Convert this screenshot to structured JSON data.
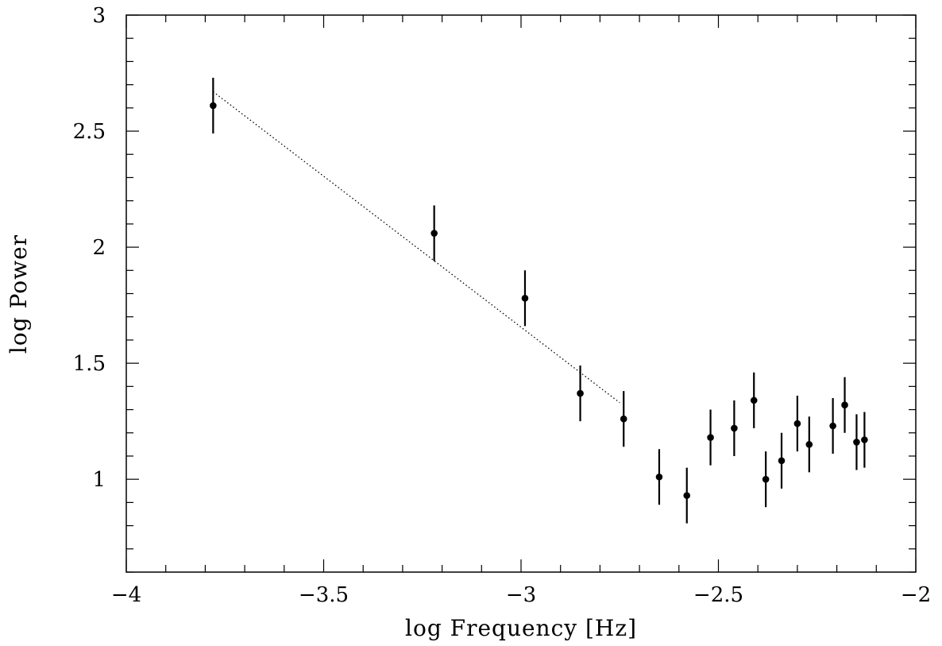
{
  "chart_data": {
    "type": "scatter",
    "title": "",
    "xlabel": "log Frequency [Hz]",
    "ylabel": "log Power",
    "xlim": [
      -4,
      -2
    ],
    "ylim": [
      0.6,
      3
    ],
    "x_ticks": [
      {
        "value": -4,
        "label": "−4"
      },
      {
        "value": -3.5,
        "label": "−3.5"
      },
      {
        "value": -3,
        "label": "−3"
      },
      {
        "value": -2.5,
        "label": "−2.5"
      },
      {
        "value": -2,
        "label": "−2"
      }
    ],
    "y_ticks": [
      {
        "value": 1,
        "label": "1"
      },
      {
        "value": 1.5,
        "label": "1.5"
      },
      {
        "value": 2,
        "label": "2"
      },
      {
        "value": 2.5,
        "label": "2.5"
      },
      {
        "value": 3,
        "label": "3"
      }
    ],
    "x_minor_step": 0.1,
    "y_minor_step": 0.1,
    "grid": false,
    "series": [
      {
        "points": [
          {
            "x": -3.78,
            "y": 2.61,
            "err": 0.12
          },
          {
            "x": -3.22,
            "y": 2.06,
            "err": 0.12
          },
          {
            "x": -2.99,
            "y": 1.78,
            "err": 0.12
          },
          {
            "x": -2.85,
            "y": 1.37,
            "err": 0.12
          },
          {
            "x": -2.74,
            "y": 1.26,
            "err": 0.12
          },
          {
            "x": -2.65,
            "y": 1.01,
            "err": 0.12
          },
          {
            "x": -2.58,
            "y": 0.93,
            "err": 0.12
          },
          {
            "x": -2.52,
            "y": 1.18,
            "err": 0.12
          },
          {
            "x": -2.46,
            "y": 1.22,
            "err": 0.12
          },
          {
            "x": -2.41,
            "y": 1.34,
            "err": 0.12
          },
          {
            "x": -2.38,
            "y": 1.0,
            "err": 0.12
          },
          {
            "x": -2.34,
            "y": 1.08,
            "err": 0.12
          },
          {
            "x": -2.3,
            "y": 1.24,
            "err": 0.12
          },
          {
            "x": -2.27,
            "y": 1.15,
            "err": 0.12
          },
          {
            "x": -2.21,
            "y": 1.23,
            "err": 0.12
          },
          {
            "x": -2.18,
            "y": 1.32,
            "err": 0.12
          },
          {
            "x": -2.15,
            "y": 1.16,
            "err": 0.12
          },
          {
            "x": -2.13,
            "y": 1.17,
            "err": 0.12
          }
        ]
      }
    ],
    "fit_line": {
      "style": "dotted",
      "x": [
        -3.78,
        -2.75
      ],
      "y": [
        2.67,
        1.33
      ]
    }
  }
}
